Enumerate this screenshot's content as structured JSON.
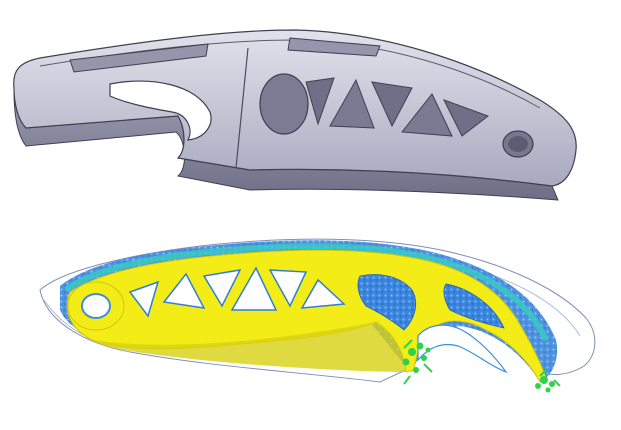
{
  "scene": {
    "background": "#ffffff",
    "top_model": {
      "kind": "cad-part",
      "shading": "gray",
      "colors": {
        "face": "#c9c9d6",
        "side": "#8d8da4",
        "edge": "#3f3f52",
        "hole": "#777790"
      }
    },
    "bottom_model": {
      "kind": "topology-optimization-result",
      "colors": {
        "material": "#f3ec17",
        "material_shade": "#cfc80f",
        "low_density": "#3a8de0",
        "transition": "#38c9c4",
        "load_marker": "#2fd34a",
        "ghost_outline": "#7d8fb5"
      }
    }
  }
}
